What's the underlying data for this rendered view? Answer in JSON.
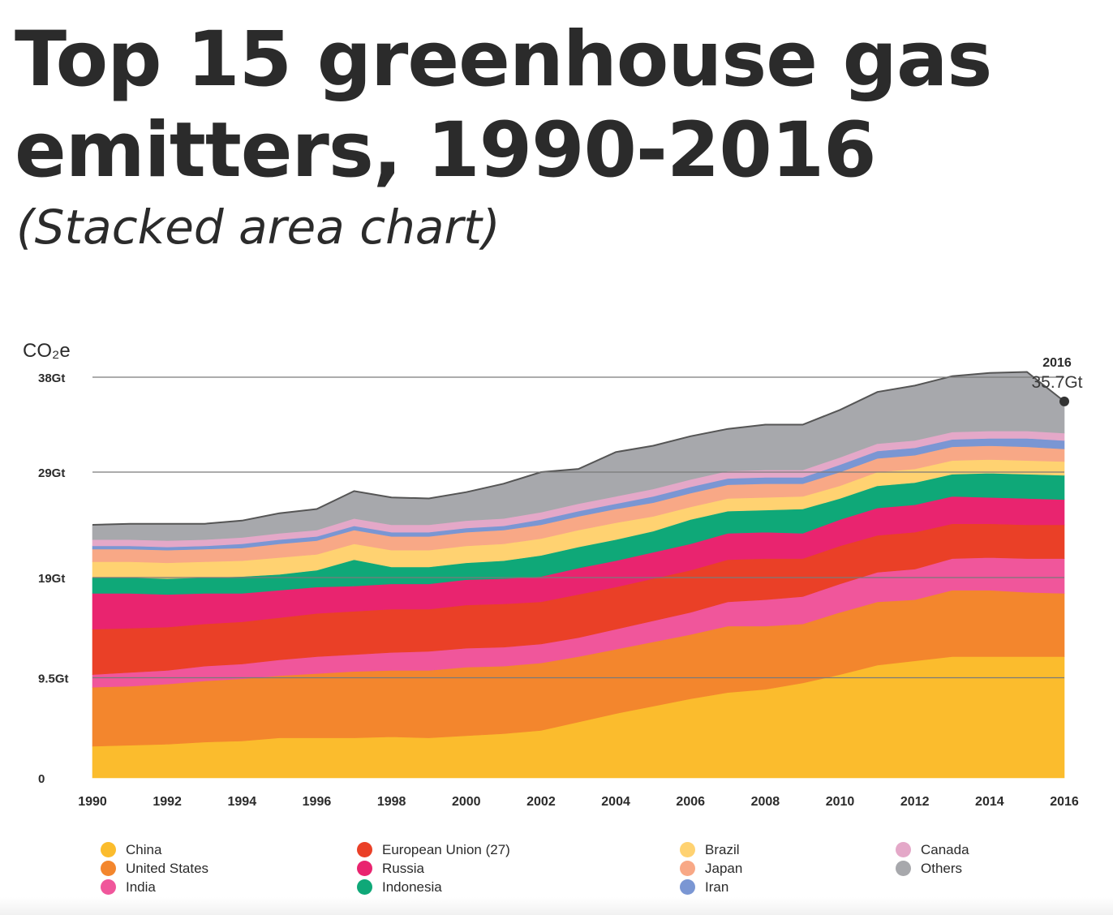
{
  "title_line1": "Top 15 greenhouse gas",
  "title_line2": "emitters, 1990-2016",
  "subtitle": "(Stacked area chart)",
  "chart_data": {
    "type": "area",
    "stacked": true,
    "ylabel": "CO₂e",
    "ylim": [
      0,
      38
    ],
    "y_ticks": [
      {
        "value": 0,
        "label": "0"
      },
      {
        "value": 9.5,
        "label": "9.5Gt"
      },
      {
        "value": 19,
        "label": "19Gt"
      },
      {
        "value": 29,
        "label": "29Gt"
      },
      {
        "value": 38,
        "label": "38Gt"
      }
    ],
    "x_ticks": [
      1990,
      1992,
      1994,
      1996,
      1998,
      2000,
      2002,
      2004,
      2006,
      2008,
      2010,
      2012,
      2014,
      2016
    ],
    "x": [
      1990,
      1991,
      1992,
      1993,
      1994,
      1995,
      1996,
      1997,
      1998,
      1999,
      2000,
      2001,
      2002,
      2003,
      2004,
      2005,
      2006,
      2007,
      2008,
      2009,
      2010,
      2011,
      2012,
      2013,
      2014,
      2015,
      2016
    ],
    "grid": true,
    "legend_position": "bottom",
    "annotation": {
      "year": "2016",
      "value": "35.7Gt"
    },
    "series": [
      {
        "name": "China",
        "color": "#fbbc2d",
        "values": [
          3.0,
          3.1,
          3.2,
          3.4,
          3.5,
          3.8,
          3.8,
          3.8,
          3.9,
          3.8,
          4.0,
          4.2,
          4.5,
          5.3,
          6.1,
          6.8,
          7.5,
          8.1,
          8.4,
          9.0,
          9.8,
          10.7,
          11.1,
          11.5,
          11.5,
          11.5,
          11.5
        ]
      },
      {
        "name": "United States",
        "color": "#f3862d",
        "values": [
          5.6,
          5.6,
          5.7,
          5.8,
          5.9,
          5.9,
          6.1,
          6.3,
          6.3,
          6.4,
          6.5,
          6.4,
          6.4,
          6.2,
          6.1,
          6.1,
          6.1,
          6.3,
          6.0,
          5.6,
          5.9,
          6.0,
          5.8,
          6.3,
          6.3,
          6.1,
          6.0
        ]
      },
      {
        "name": "India",
        "color": "#f0569b",
        "values": [
          1.2,
          1.3,
          1.3,
          1.4,
          1.4,
          1.5,
          1.6,
          1.6,
          1.7,
          1.8,
          1.8,
          1.8,
          1.8,
          1.8,
          1.9,
          2.0,
          2.1,
          2.3,
          2.5,
          2.6,
          2.7,
          2.8,
          2.9,
          3.0,
          3.1,
          3.2,
          3.3
        ]
      },
      {
        "name": "European Union (27)",
        "color": "#ea4027",
        "values": [
          4.3,
          4.2,
          4.1,
          4.0,
          4.0,
          4.0,
          4.1,
          4.1,
          4.1,
          4.0,
          4.1,
          4.1,
          4.0,
          4.1,
          4.0,
          4.0,
          4.0,
          4.0,
          3.9,
          3.6,
          3.6,
          3.5,
          3.5,
          3.3,
          3.2,
          3.2,
          3.2
        ]
      },
      {
        "name": "Russia",
        "color": "#e9246f",
        "values": [
          3.4,
          3.3,
          3.1,
          2.9,
          2.7,
          2.6,
          2.5,
          2.4,
          2.4,
          2.4,
          2.4,
          2.4,
          2.4,
          2.5,
          2.5,
          2.5,
          2.5,
          2.5,
          2.5,
          2.4,
          2.5,
          2.6,
          2.6,
          2.6,
          2.5,
          2.5,
          2.4
        ]
      },
      {
        "name": "Indonesia",
        "color": "#0fa878",
        "values": [
          1.5,
          1.5,
          1.5,
          1.5,
          1.6,
          1.5,
          1.6,
          2.5,
          1.6,
          1.6,
          1.6,
          1.7,
          2.0,
          2.0,
          2.0,
          2.0,
          2.3,
          2.1,
          2.1,
          2.3,
          2.0,
          2.1,
          2.1,
          2.1,
          2.3,
          2.3,
          2.3
        ]
      },
      {
        "name": "Brazil",
        "color": "#ffd271",
        "values": [
          1.5,
          1.5,
          1.5,
          1.5,
          1.5,
          1.6,
          1.5,
          1.5,
          1.6,
          1.6,
          1.6,
          1.6,
          1.6,
          1.6,
          1.6,
          1.4,
          1.2,
          1.2,
          1.2,
          1.2,
          1.2,
          1.3,
          1.3,
          1.3,
          1.3,
          1.3,
          1.3
        ]
      },
      {
        "name": "Japan",
        "color": "#f8a886",
        "values": [
          1.2,
          1.2,
          1.2,
          1.2,
          1.2,
          1.3,
          1.3,
          1.3,
          1.3,
          1.3,
          1.3,
          1.3,
          1.3,
          1.3,
          1.3,
          1.3,
          1.3,
          1.3,
          1.3,
          1.2,
          1.3,
          1.3,
          1.3,
          1.3,
          1.3,
          1.3,
          1.2
        ]
      },
      {
        "name": "Iran",
        "color": "#7a96d3",
        "values": [
          0.3,
          0.3,
          0.3,
          0.3,
          0.4,
          0.4,
          0.4,
          0.4,
          0.4,
          0.4,
          0.4,
          0.4,
          0.5,
          0.5,
          0.5,
          0.6,
          0.6,
          0.6,
          0.6,
          0.6,
          0.7,
          0.7,
          0.7,
          0.7,
          0.7,
          0.8,
          0.8
        ]
      },
      {
        "name": "Canada",
        "color": "#e4a8c8",
        "values": [
          0.6,
          0.6,
          0.6,
          0.6,
          0.6,
          0.6,
          0.6,
          0.7,
          0.7,
          0.7,
          0.7,
          0.7,
          0.7,
          0.7,
          0.7,
          0.7,
          0.7,
          0.7,
          0.7,
          0.7,
          0.7,
          0.7,
          0.7,
          0.7,
          0.7,
          0.7,
          0.7
        ]
      },
      {
        "name": "Others",
        "color": "#a7a8ac",
        "values": [
          1.4,
          1.5,
          1.6,
          1.5,
          1.6,
          1.9,
          2.0,
          2.6,
          2.6,
          2.5,
          2.7,
          3.3,
          3.8,
          3.3,
          4.2,
          4.1,
          4.1,
          4.0,
          4.3,
          4.3,
          4.5,
          4.9,
          5.2,
          5.3,
          5.5,
          5.6,
          3.0
        ]
      }
    ]
  },
  "legend": {
    "items": [
      {
        "label": "China",
        "color": "#fbbc2d"
      },
      {
        "label": "United States",
        "color": "#f3862d"
      },
      {
        "label": "India",
        "color": "#f0569b"
      },
      {
        "label": "European Union (27)",
        "color": "#ea4027"
      },
      {
        "label": "Russia",
        "color": "#e9246f"
      },
      {
        "label": "Indonesia",
        "color": "#0fa878"
      },
      {
        "label": "Brazil",
        "color": "#ffd271"
      },
      {
        "label": "Japan",
        "color": "#f8a886"
      },
      {
        "label": "Iran",
        "color": "#7a96d3"
      },
      {
        "label": "Canada",
        "color": "#e4a8c8"
      },
      {
        "label": "Others",
        "color": "#a7a8ac"
      }
    ]
  }
}
